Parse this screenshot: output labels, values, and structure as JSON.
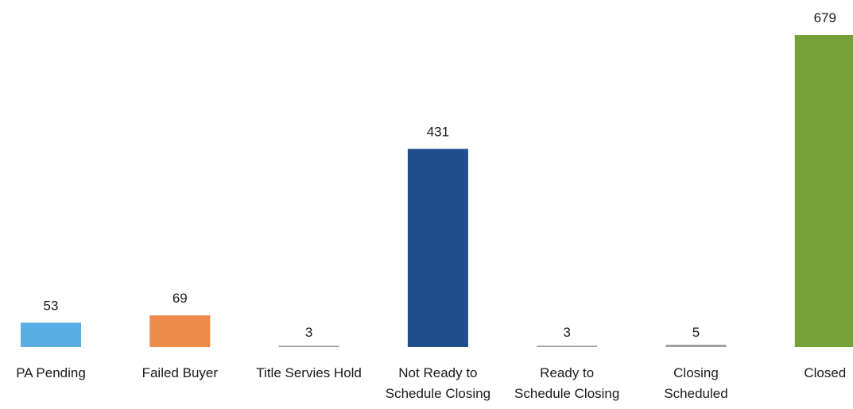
{
  "chart_data": {
    "type": "bar",
    "title": "",
    "xlabel": "",
    "ylabel": "",
    "grid": false,
    "legend": "none",
    "categories": [
      [
        "PA Pending"
      ],
      [
        "Failed Buyer"
      ],
      [
        "Title Servies Hold"
      ],
      [
        "Not Ready to",
        "Schedule Closing"
      ],
      [
        "Ready to",
        "Schedule Closing"
      ],
      [
        "Closing",
        "Scheduled"
      ],
      [
        "Closed"
      ]
    ],
    "values": [
      53,
      69,
      3,
      431,
      3,
      5,
      679
    ],
    "value_labels": [
      "53",
      "69",
      "3",
      "431",
      "3",
      "5",
      "679"
    ],
    "colors": [
      "#5aaee6",
      "#ee8a4c",
      "#9e9e9e",
      "#1f4e8f",
      "#9e9e9e",
      "#9e9e9e",
      "#77a23a"
    ],
    "ylim": [
      0,
      679
    ]
  }
}
